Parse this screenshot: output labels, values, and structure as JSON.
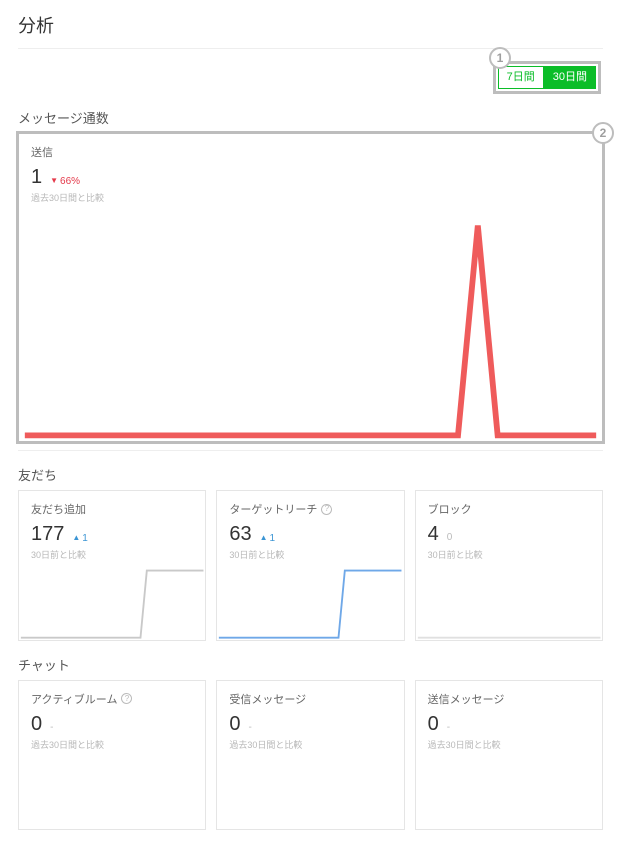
{
  "page": {
    "title": "分析"
  },
  "callouts": {
    "one": "1",
    "two": "2"
  },
  "toggle": {
    "opt7": "7日間",
    "opt30": "30日間",
    "active": "30",
    "active_bg": "#0bbd28"
  },
  "sections": {
    "messages": {
      "heading": "メッセージ通数",
      "card": {
        "title": "送信",
        "value": "1",
        "delta_dir": "down",
        "delta_text": "66%",
        "compare": "過去30日間と比較",
        "spark": {
          "type": "line",
          "color": "#ef5b5b",
          "baseline_color": "#ef5b5b",
          "points": [
            0,
            0,
            0,
            0,
            0,
            0,
            0,
            0,
            0,
            0,
            0,
            0,
            0,
            0,
            0,
            0,
            0,
            0,
            0,
            0,
            0,
            0,
            0,
            1,
            0,
            0,
            0,
            0,
            0,
            0
          ],
          "ymax": 1
        }
      }
    },
    "friends": {
      "heading": "友だち",
      "cards": [
        {
          "title": "友だち追加",
          "value": "177",
          "delta_dir": "up",
          "delta_text": "1",
          "compare": "30日前と比較",
          "spark": {
            "type": "line",
            "color": "#c9c9c9",
            "points": [
              0,
              0,
              0,
              0,
              0,
              0,
              0,
              0,
              0,
              0,
              0,
              0,
              0,
              0,
              0,
              0,
              0,
              0,
              0,
              0,
              1,
              1,
              1,
              1,
              1,
              1,
              1,
              1,
              1,
              1
            ],
            "ymax": 1
          }
        },
        {
          "title": "ターゲットリーチ",
          "help": true,
          "value": "63",
          "delta_dir": "up",
          "delta_text": "1",
          "compare": "30日前と比較",
          "spark": {
            "type": "line",
            "color": "#6fa8e8",
            "points": [
              0,
              0,
              0,
              0,
              0,
              0,
              0,
              0,
              0,
              0,
              0,
              0,
              0,
              0,
              0,
              0,
              0,
              0,
              0,
              0,
              1,
              1,
              1,
              1,
              1,
              1,
              1,
              1,
              1,
              1
            ],
            "ymax": 1
          }
        },
        {
          "title": "ブロック",
          "value": "4",
          "delta_dir": "flat",
          "delta_text": "0",
          "compare": "30日前と比較",
          "spark": {
            "type": "line",
            "color": "#e0e0e0",
            "points": [
              0,
              0,
              0,
              0,
              0,
              0,
              0,
              0,
              0,
              0,
              0,
              0,
              0,
              0,
              0,
              0,
              0,
              0,
              0,
              0,
              0,
              0,
              0,
              0,
              0,
              0,
              0,
              0,
              0,
              0
            ],
            "ymax": 1
          }
        }
      ]
    },
    "chat": {
      "heading": "チャット",
      "cards": [
        {
          "title": "アクティブルーム",
          "help": true,
          "value": "0",
          "delta_dir": "flat",
          "delta_text": "-",
          "compare": "過去30日間と比較"
        },
        {
          "title": "受信メッセージ",
          "value": "0",
          "delta_dir": "flat",
          "delta_text": "-",
          "compare": "過去30日間と比較"
        },
        {
          "title": "送信メッセージ",
          "value": "0",
          "delta_dir": "flat",
          "delta_text": "-",
          "compare": "過去30日間と比較"
        }
      ]
    }
  }
}
